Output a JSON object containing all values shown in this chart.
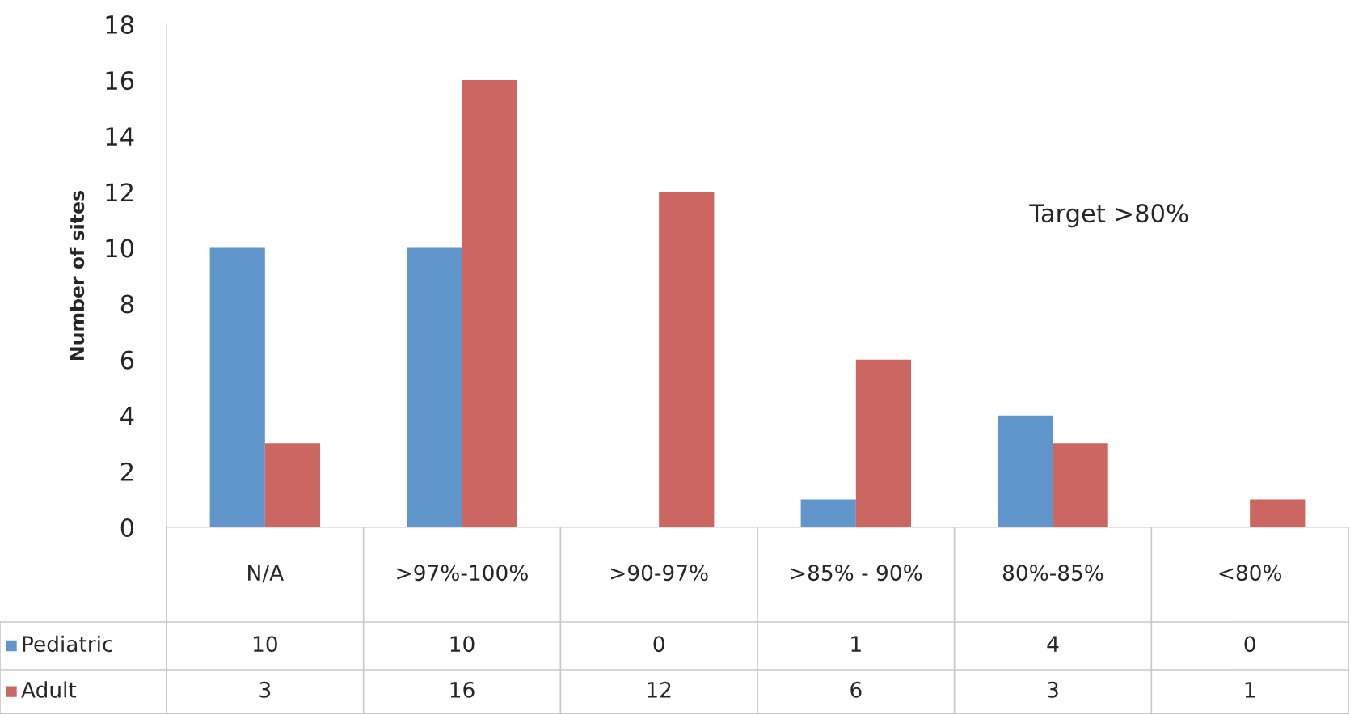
{
  "chart_data": {
    "type": "bar",
    "ylabel": "Number of sites",
    "categories": [
      "N/A",
      ">97%-100%",
      ">90-97%",
      ">85% - 90%",
      "80%-85%",
      "<80%"
    ],
    "series": [
      {
        "name": "Pediatric",
        "color": "#6096cc",
        "values": [
          10,
          10,
          0,
          1,
          4,
          0
        ]
      },
      {
        "name": "Adult",
        "color": "#cc6660",
        "values": [
          3,
          16,
          12,
          6,
          3,
          1
        ]
      }
    ],
    "ylim": [
      0,
      18
    ],
    "yticks": [
      0,
      2,
      4,
      6,
      8,
      10,
      12,
      14,
      16,
      18
    ],
    "grid": false,
    "legend": "bottom",
    "data_labels": true,
    "annotations": [
      "Target >80%"
    ]
  }
}
